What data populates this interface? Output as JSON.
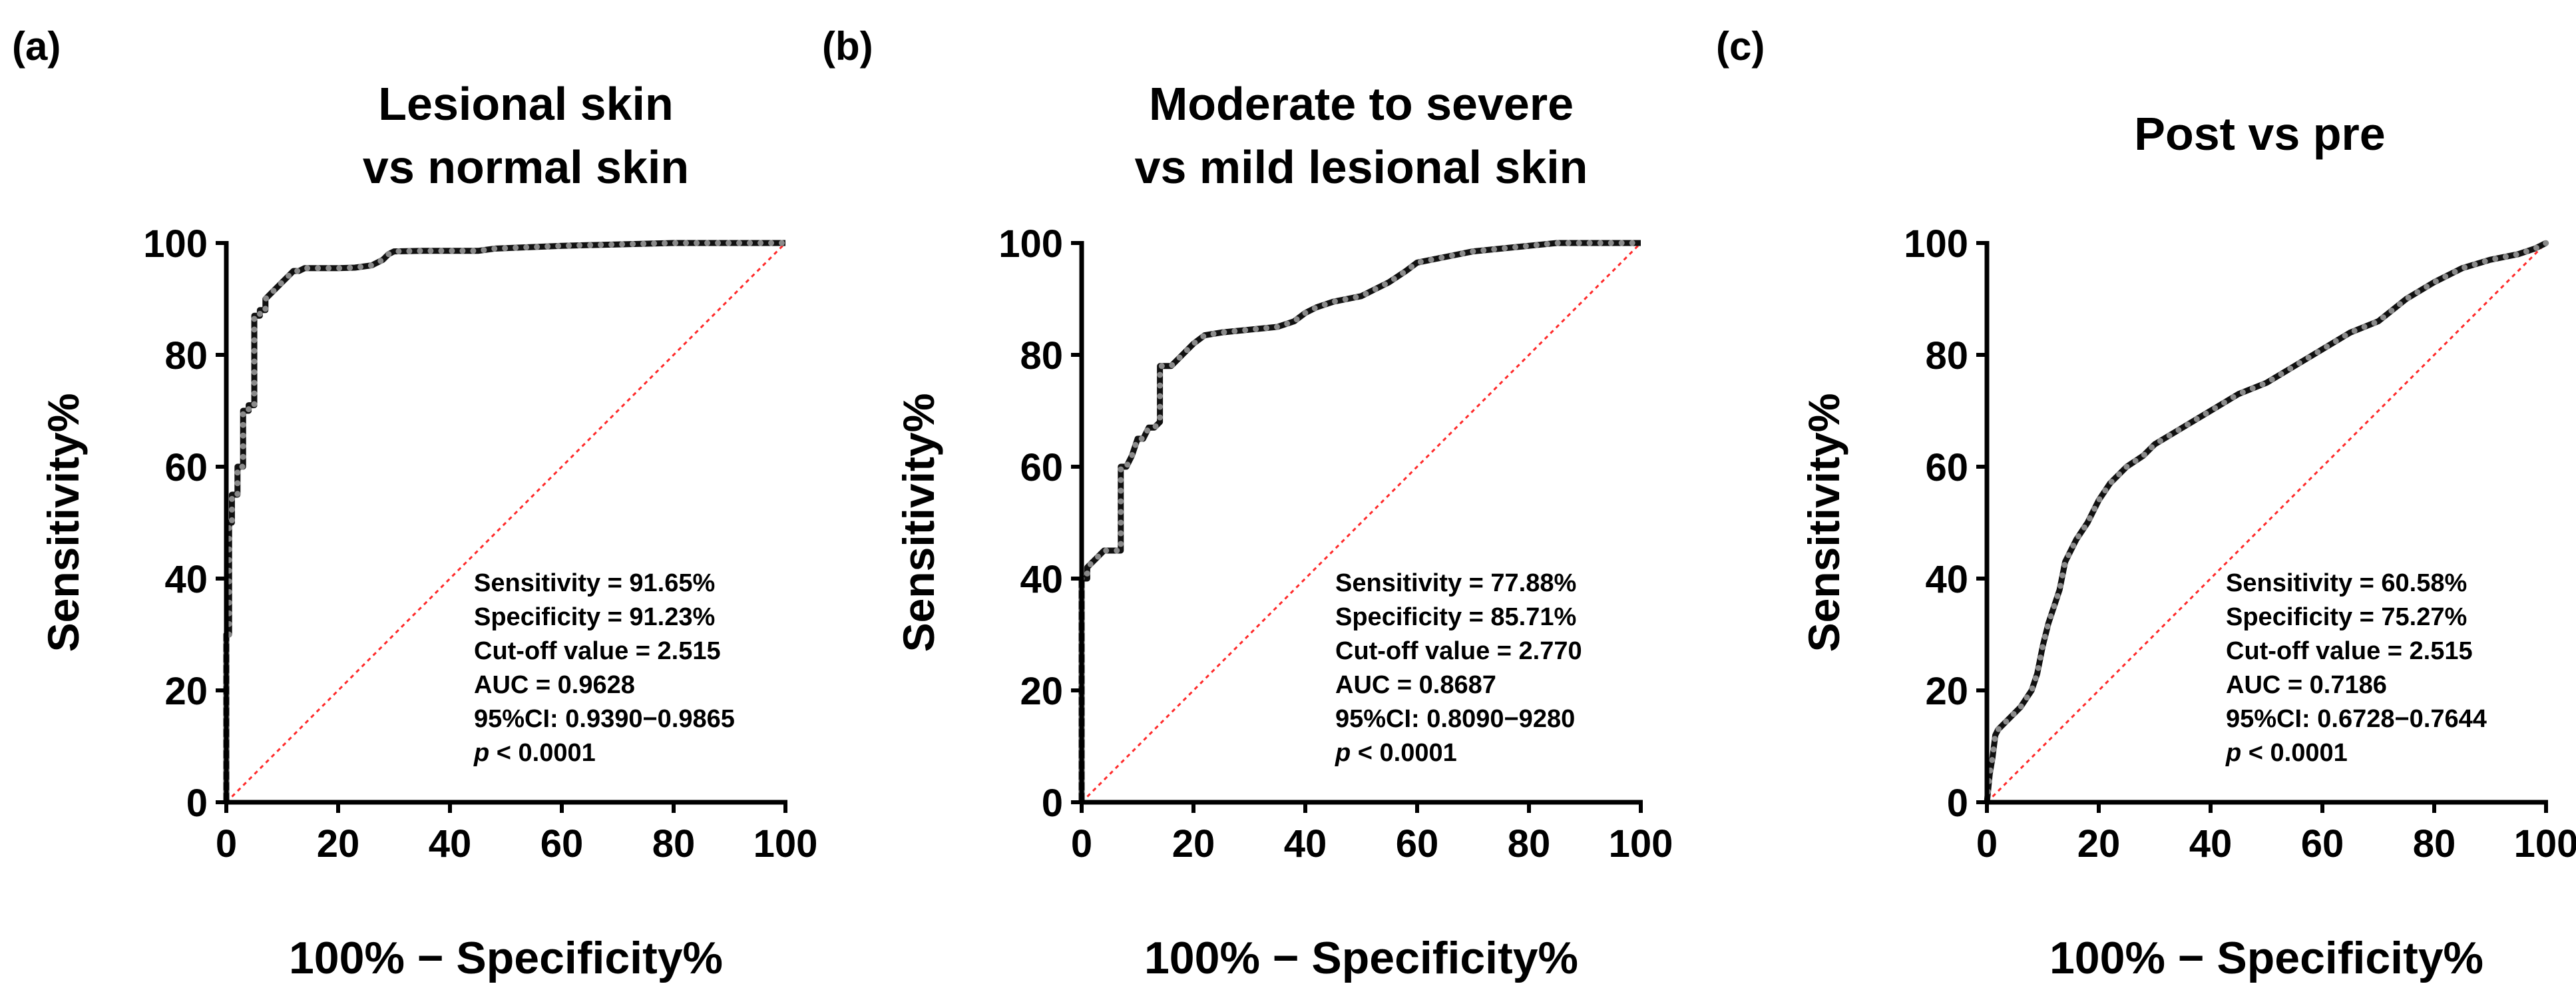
{
  "chart_data": [
    {
      "type": "line",
      "panel_label": "(a)",
      "title_lines": [
        "Lesional skin",
        "vs normal skin"
      ],
      "xlabel": "100% − Specificity%",
      "ylabel": "Sensitivity%",
      "xlim": [
        0,
        100
      ],
      "ylim": [
        0,
        100
      ],
      "xticks": [
        "0",
        "20",
        "40",
        "60",
        "80",
        "100"
      ],
      "yticks": [
        "0",
        "20",
        "40",
        "60",
        "80",
        "100"
      ],
      "reference_line": "diagonal",
      "stats": [
        "Sensitivity = 91.65%",
        "Specificity = 91.23%",
        "Cut-off value = 2.515",
        "AUC = 0.9628",
        "95%CI: 0.9390−0.9865"
      ],
      "p_label": "p",
      "p_value": " < 0.0001",
      "series": [
        {
          "name": "ROC",
          "x": [
            0,
            0,
            0.5,
            0.5,
            1,
            1,
            2,
            2,
            3,
            3,
            4,
            4,
            5,
            5,
            6,
            6,
            7,
            7,
            8,
            9,
            10,
            11,
            12,
            13,
            14,
            20,
            23,
            26,
            27,
            28,
            29,
            30,
            35,
            40,
            45,
            48,
            60,
            80,
            100
          ],
          "y": [
            0,
            30,
            30,
            50,
            50,
            55,
            55,
            60,
            60,
            70,
            70,
            71,
            71,
            87,
            87,
            88,
            88,
            90,
            91,
            92,
            93,
            94,
            95,
            95,
            95.5,
            95.5,
            95.6,
            96,
            96.5,
            97,
            98,
            98.5,
            98.6,
            98.6,
            98.6,
            99,
            99.5,
            100,
            100
          ]
        }
      ]
    },
    {
      "type": "line",
      "panel_label": "(b)",
      "title_lines": [
        "Moderate to severe",
        "vs mild lesional skin"
      ],
      "xlabel": "100% − Specificity%",
      "ylabel": "Sensitivity%",
      "xlim": [
        0,
        100
      ],
      "ylim": [
        0,
        100
      ],
      "xticks": [
        "0",
        "20",
        "40",
        "60",
        "80",
        "100"
      ],
      "yticks": [
        "0",
        "20",
        "40",
        "60",
        "80",
        "100"
      ],
      "reference_line": "diagonal",
      "stats": [
        "Sensitivity = 77.88%",
        "Specificity = 85.71%",
        "Cut-off value = 2.770",
        "AUC = 0.8687",
        "95%CI: 0.8090−9280"
      ],
      "p_label": "p",
      "p_value": " < 0.0001",
      "series": [
        {
          "name": "ROC",
          "x": [
            0,
            0,
            1,
            1,
            2,
            3,
            4,
            5,
            6,
            7,
            7,
            8,
            9,
            10,
            11,
            12,
            13,
            14,
            14,
            16,
            18,
            20,
            22,
            25,
            30,
            35,
            38,
            40,
            42,
            45,
            50,
            52,
            55,
            58,
            60,
            65,
            70,
            75,
            80,
            85,
            90,
            100
          ],
          "y": [
            0,
            40,
            40,
            42,
            43,
            44,
            45,
            45,
            45,
            45,
            60,
            60,
            62,
            65,
            65,
            67,
            67,
            68,
            78,
            78,
            80,
            82,
            83.5,
            84,
            84.5,
            85,
            86,
            87.5,
            88.5,
            89.5,
            90.5,
            91.5,
            93,
            95,
            96.5,
            97.5,
            98.5,
            99,
            99.5,
            100,
            100,
            100
          ]
        }
      ]
    },
    {
      "type": "line",
      "panel_label": "(c)",
      "title_lines": [
        "Post vs pre"
      ],
      "xlabel": "100% − Specificity%",
      "ylabel": "Sensitivity%",
      "xlim": [
        0,
        100
      ],
      "ylim": [
        0,
        100
      ],
      "xticks": [
        "0",
        "20",
        "40",
        "60",
        "80",
        "100"
      ],
      "yticks": [
        "0",
        "20",
        "40",
        "60",
        "80",
        "100"
      ],
      "reference_line": "diagonal",
      "stats": [
        "Sensitivity = 60.58%",
        "Specificity = 75.27%",
        "Cut-off value = 2.515",
        "AUC = 0.7186",
        "95%CI: 0.6728−0.7644"
      ],
      "p_label": "p",
      "p_value": " < 0.0001",
      "series": [
        {
          "name": "ROC",
          "x": [
            0,
            0.5,
            1,
            1.5,
            2,
            4,
            6,
            8,
            9,
            10,
            11,
            12,
            13,
            14,
            16,
            18,
            20,
            22,
            25,
            28,
            30,
            35,
            40,
            45,
            50,
            55,
            60,
            65,
            70,
            75,
            80,
            85,
            90,
            95,
            98,
            100
          ],
          "y": [
            0,
            5,
            8,
            12,
            13,
            15,
            17,
            20,
            23,
            28,
            32,
            35,
            38,
            43,
            47,
            50,
            54,
            57,
            60,
            62,
            64,
            67,
            70,
            73,
            75,
            78,
            81,
            84,
            86,
            90,
            93,
            95.5,
            97,
            98,
            99,
            100
          ]
        }
      ]
    }
  ]
}
